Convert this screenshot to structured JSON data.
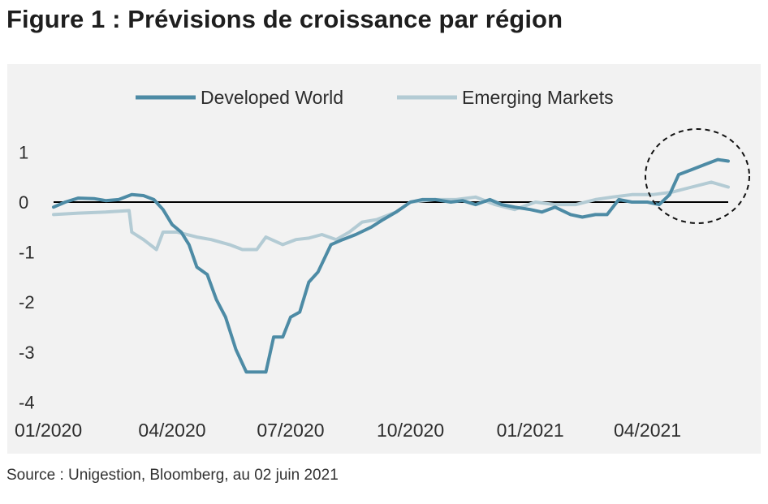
{
  "title": "Figure 1 : Prévisions de croissance par région",
  "source": "Source : Unigestion, Bloomberg, au 02 juin 2021",
  "colors": {
    "developed": "#4d8ba5",
    "emerging": "#b3cbd4",
    "background": "#f2f2f2",
    "axis": "#000000",
    "text": "#2d2d2d"
  },
  "chart_data": {
    "type": "line",
    "title": "",
    "xlabel": "",
    "ylabel": "",
    "ylim": [
      -4,
      1.5
    ],
    "yticks": [
      "1",
      "0",
      "-1",
      "-2",
      "-3",
      "-4"
    ],
    "ytick_values": [
      1,
      0,
      -1,
      -2,
      -3,
      -4
    ],
    "xticks": [
      "01/2020",
      "04/2020",
      "07/2020",
      "10/2020",
      "01/2021",
      "04/2021"
    ],
    "xtick_values": [
      "2020-01-01",
      "2020-04-01",
      "2020-07-01",
      "2020-10-01",
      "2021-01-01",
      "2021-04-01"
    ],
    "x_range": [
      "2020-01-01",
      "2021-06-02"
    ],
    "grid": false,
    "legend": "top-center",
    "annotation": "dashed circle around latest values",
    "series": [
      {
        "name": "Developed World",
        "color": "#4d8ba5",
        "points": [
          [
            "2020-01-01",
            -0.1
          ],
          [
            "2020-01-10",
            0.0
          ],
          [
            "2020-01-20",
            0.08
          ],
          [
            "2020-02-01",
            0.07
          ],
          [
            "2020-02-10",
            0.03
          ],
          [
            "2020-02-20",
            0.05
          ],
          [
            "2020-03-01",
            0.15
          ],
          [
            "2020-03-10",
            0.13
          ],
          [
            "2020-03-18",
            0.05
          ],
          [
            "2020-03-25",
            -0.15
          ],
          [
            "2020-04-01",
            -0.45
          ],
          [
            "2020-04-08",
            -0.6
          ],
          [
            "2020-04-14",
            -0.85
          ],
          [
            "2020-04-20",
            -1.3
          ],
          [
            "2020-04-28",
            -1.45
          ],
          [
            "2020-05-05",
            -1.95
          ],
          [
            "2020-05-12",
            -2.3
          ],
          [
            "2020-05-20",
            -2.95
          ],
          [
            "2020-05-28",
            -3.4
          ],
          [
            "2020-06-05",
            -3.4
          ],
          [
            "2020-06-12",
            -3.4
          ],
          [
            "2020-06-18",
            -2.7
          ],
          [
            "2020-06-25",
            -2.7
          ],
          [
            "2020-07-01",
            -2.3
          ],
          [
            "2020-07-08",
            -2.2
          ],
          [
            "2020-07-15",
            -1.6
          ],
          [
            "2020-07-22",
            -1.4
          ],
          [
            "2020-08-01",
            -0.85
          ],
          [
            "2020-08-10",
            -0.75
          ],
          [
            "2020-08-20",
            -0.65
          ],
          [
            "2020-09-01",
            -0.5
          ],
          [
            "2020-09-10",
            -0.35
          ],
          [
            "2020-09-20",
            -0.2
          ],
          [
            "2020-10-01",
            0.0
          ],
          [
            "2020-10-10",
            0.05
          ],
          [
            "2020-10-20",
            0.05
          ],
          [
            "2020-11-01",
            0.0
          ],
          [
            "2020-11-10",
            0.03
          ],
          [
            "2020-11-20",
            -0.05
          ],
          [
            "2020-12-01",
            0.05
          ],
          [
            "2020-12-10",
            -0.05
          ],
          [
            "2020-12-20",
            -0.1
          ],
          [
            "2021-01-01",
            -0.15
          ],
          [
            "2021-01-10",
            -0.2
          ],
          [
            "2021-01-20",
            -0.1
          ],
          [
            "2021-02-01",
            -0.25
          ],
          [
            "2021-02-10",
            -0.3
          ],
          [
            "2021-02-20",
            -0.25
          ],
          [
            "2021-03-01",
            -0.25
          ],
          [
            "2021-03-10",
            0.05
          ],
          [
            "2021-03-20",
            0.0
          ],
          [
            "2021-04-01",
            0.0
          ],
          [
            "2021-04-10",
            -0.05
          ],
          [
            "2021-04-18",
            0.15
          ],
          [
            "2021-04-25",
            0.55
          ],
          [
            "2021-05-05",
            0.65
          ],
          [
            "2021-05-15",
            0.75
          ],
          [
            "2021-05-25",
            0.85
          ],
          [
            "2021-06-02",
            0.82
          ]
        ]
      },
      {
        "name": "Emerging Markets",
        "color": "#b3cbd4",
        "points": [
          [
            "2020-01-01",
            -0.25
          ],
          [
            "2020-01-20",
            -0.22
          ],
          [
            "2020-02-10",
            -0.2
          ],
          [
            "2020-02-28",
            -0.17
          ],
          [
            "2020-03-01",
            -0.6
          ],
          [
            "2020-03-10",
            -0.75
          ],
          [
            "2020-03-20",
            -0.95
          ],
          [
            "2020-03-25",
            -0.6
          ],
          [
            "2020-04-05",
            -0.6
          ],
          [
            "2020-04-20",
            -0.7
          ],
          [
            "2020-05-01",
            -0.75
          ],
          [
            "2020-05-15",
            -0.85
          ],
          [
            "2020-05-25",
            -0.95
          ],
          [
            "2020-06-05",
            -0.95
          ],
          [
            "2020-06-12",
            -0.7
          ],
          [
            "2020-06-25",
            -0.85
          ],
          [
            "2020-07-05",
            -0.75
          ],
          [
            "2020-07-15",
            -0.72
          ],
          [
            "2020-07-25",
            -0.65
          ],
          [
            "2020-08-05",
            -0.75
          ],
          [
            "2020-08-15",
            -0.6
          ],
          [
            "2020-08-25",
            -0.4
          ],
          [
            "2020-09-05",
            -0.35
          ],
          [
            "2020-09-20",
            -0.2
          ],
          [
            "2020-10-01",
            0.0
          ],
          [
            "2020-10-20",
            0.05
          ],
          [
            "2020-11-05",
            0.05
          ],
          [
            "2020-11-20",
            0.1
          ],
          [
            "2020-12-05",
            -0.05
          ],
          [
            "2020-12-20",
            -0.15
          ],
          [
            "2021-01-05",
            0.0
          ],
          [
            "2021-01-20",
            -0.05
          ],
          [
            "2021-02-05",
            -0.05
          ],
          [
            "2021-02-20",
            0.05
          ],
          [
            "2021-03-05",
            0.1
          ],
          [
            "2021-03-20",
            0.15
          ],
          [
            "2021-04-05",
            0.15
          ],
          [
            "2021-04-20",
            0.2
          ],
          [
            "2021-05-05",
            0.3
          ],
          [
            "2021-05-20",
            0.4
          ],
          [
            "2021-06-02",
            0.3
          ]
        ]
      }
    ]
  }
}
